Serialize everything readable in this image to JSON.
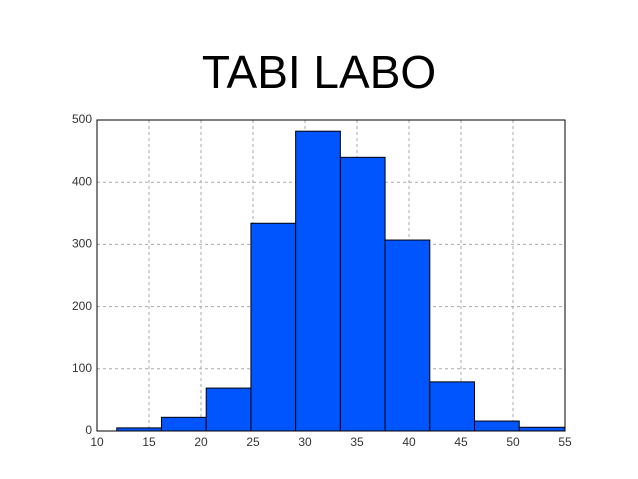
{
  "chart_data": {
    "type": "histogram",
    "title": "TABI LABO",
    "bins": [
      11.9,
      16.2,
      20.5,
      24.8,
      29.1,
      33.4,
      37.7,
      42.0,
      46.3,
      50.6,
      55
    ],
    "values": [
      5,
      22,
      69,
      334,
      482,
      440,
      307,
      79,
      16,
      6
    ],
    "color": "#0055ff",
    "xlim": [
      10,
      55
    ],
    "xticks": [
      10,
      15,
      20,
      25,
      30,
      35,
      40,
      45,
      50,
      55
    ],
    "ylim": [
      0,
      500
    ],
    "yticks": [
      0,
      100,
      200,
      300,
      400,
      500
    ],
    "grid": true
  }
}
